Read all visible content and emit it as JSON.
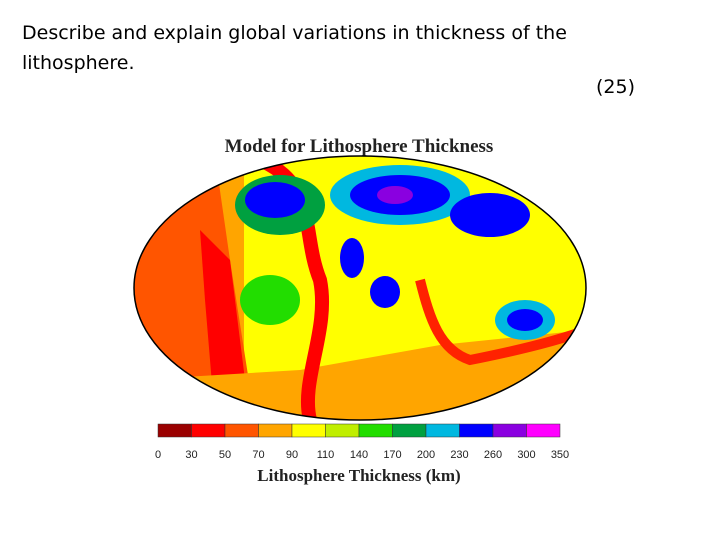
{
  "question": {
    "text": "Describe and explain global variations in thickness of the lithosphere.",
    "marks": "(25)"
  },
  "figure": {
    "title": "Model for Lithosphere Thickness",
    "colorbar": {
      "label": "Lithosphere Thickness (km)",
      "ticks": [
        0,
        30,
        50,
        70,
        90,
        110,
        140,
        170,
        200,
        230,
        260,
        300,
        350
      ],
      "colors": [
        "#9a0000",
        "#ff0000",
        "#ff5500",
        "#ffa500",
        "#ffff00",
        "#c0ee00",
        "#22dd00",
        "#00a040",
        "#00b8e0",
        "#0000ff",
        "#8a00e0",
        "#ff00ff"
      ]
    }
  }
}
